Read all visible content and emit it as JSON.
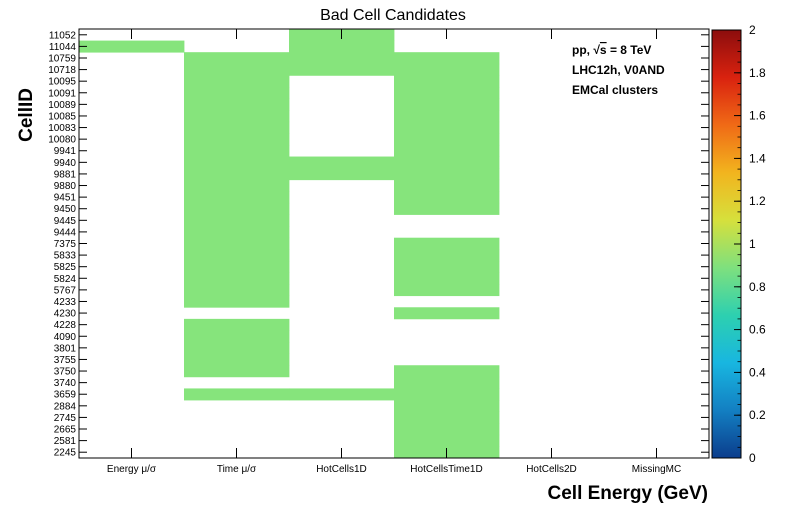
{
  "chart_data": {
    "type": "heatmap",
    "title": "Bad Cell Candidates",
    "xlabel": "Cell Energy (GeV)",
    "ylabel": "CellID",
    "x_categories": [
      "Energy μ/σ",
      "Time μ/σ",
      "HotCells1D",
      "HotCellsTime1D",
      "HotCells2D",
      "MissingMC"
    ],
    "y_categories": [
      "2245",
      "2581",
      "2665",
      "2745",
      "2884",
      "3659",
      "3740",
      "3750",
      "3755",
      "3801",
      "4090",
      "4228",
      "4230",
      "4233",
      "5767",
      "5824",
      "5825",
      "5833",
      "7375",
      "9444",
      "9445",
      "9450",
      "9451",
      "9880",
      "9881",
      "9940",
      "9941",
      "10080",
      "10083",
      "10085",
      "10089",
      "10091",
      "10095",
      "10718",
      "10759",
      "11044",
      "11052"
    ],
    "cells": [
      {
        "x": "Energy μ/σ",
        "y": "11044",
        "value": 1
      },
      {
        "x": "HotCells1D",
        "y": "11052",
        "value": 1
      },
      {
        "x": "HotCells1D",
        "y": "11044",
        "value": 1
      },
      {
        "x": "Time μ/σ",
        "y": "10759",
        "value": 1
      },
      {
        "x": "HotCells1D",
        "y": "10759",
        "value": 1
      },
      {
        "x": "HotCellsTime1D",
        "y": "10759",
        "value": 1
      },
      {
        "x": "Time μ/σ",
        "y": "10718",
        "value": 1
      },
      {
        "x": "HotCells1D",
        "y": "10718",
        "value": 1
      },
      {
        "x": "HotCellsTime1D",
        "y": "10718",
        "value": 1
      },
      {
        "x": "Time μ/σ",
        "y": "10095",
        "value": 1
      },
      {
        "x": "HotCellsTime1D",
        "y": "10095",
        "value": 1
      },
      {
        "x": "Time μ/σ",
        "y": "10091",
        "value": 1
      },
      {
        "x": "HotCellsTime1D",
        "y": "10091",
        "value": 1
      },
      {
        "x": "Time μ/σ",
        "y": "10089",
        "value": 1
      },
      {
        "x": "HotCellsTime1D",
        "y": "10089",
        "value": 1
      },
      {
        "x": "Time μ/σ",
        "y": "10085",
        "value": 1
      },
      {
        "x": "HotCellsTime1D",
        "y": "10085",
        "value": 1
      },
      {
        "x": "Time μ/σ",
        "y": "10083",
        "value": 1
      },
      {
        "x": "HotCellsTime1D",
        "y": "10083",
        "value": 1
      },
      {
        "x": "Time μ/σ",
        "y": "10080",
        "value": 1
      },
      {
        "x": "HotCellsTime1D",
        "y": "10080",
        "value": 1
      },
      {
        "x": "Time μ/σ",
        "y": "9941",
        "value": 1
      },
      {
        "x": "HotCellsTime1D",
        "y": "9941",
        "value": 1
      },
      {
        "x": "Time μ/σ",
        "y": "9940",
        "value": 1
      },
      {
        "x": "HotCells1D",
        "y": "9940",
        "value": 1
      },
      {
        "x": "HotCellsTime1D",
        "y": "9940",
        "value": 1
      },
      {
        "x": "Time μ/σ",
        "y": "9881",
        "value": 1
      },
      {
        "x": "HotCells1D",
        "y": "9881",
        "value": 1
      },
      {
        "x": "HotCellsTime1D",
        "y": "9881",
        "value": 1
      },
      {
        "x": "Time μ/σ",
        "y": "9880",
        "value": 1
      },
      {
        "x": "HotCellsTime1D",
        "y": "9880",
        "value": 1
      },
      {
        "x": "Time μ/σ",
        "y": "9451",
        "value": 1
      },
      {
        "x": "HotCellsTime1D",
        "y": "9451",
        "value": 1
      },
      {
        "x": "Time μ/σ",
        "y": "9450",
        "value": 1
      },
      {
        "x": "HotCellsTime1D",
        "y": "9450",
        "value": 1
      },
      {
        "x": "Time μ/σ",
        "y": "9445",
        "value": 1
      },
      {
        "x": "Time μ/σ",
        "y": "9444",
        "value": 1
      },
      {
        "x": "Time μ/σ",
        "y": "7375",
        "value": 1
      },
      {
        "x": "HotCellsTime1D",
        "y": "7375",
        "value": 1
      },
      {
        "x": "Time μ/σ",
        "y": "5833",
        "value": 1
      },
      {
        "x": "HotCellsTime1D",
        "y": "5833",
        "value": 1
      },
      {
        "x": "Time μ/σ",
        "y": "5825",
        "value": 1
      },
      {
        "x": "HotCellsTime1D",
        "y": "5825",
        "value": 1
      },
      {
        "x": "Time μ/σ",
        "y": "5824",
        "value": 1
      },
      {
        "x": "HotCellsTime1D",
        "y": "5824",
        "value": 1
      },
      {
        "x": "Time μ/σ",
        "y": "5767",
        "value": 1
      },
      {
        "x": "HotCellsTime1D",
        "y": "5767",
        "value": 1
      },
      {
        "x": "Time μ/σ",
        "y": "4233",
        "value": 1
      },
      {
        "x": "HotCellsTime1D",
        "y": "4230",
        "value": 1
      },
      {
        "x": "Time μ/σ",
        "y": "4228",
        "value": 1
      },
      {
        "x": "Time μ/σ",
        "y": "4090",
        "value": 1
      },
      {
        "x": "Time μ/σ",
        "y": "3801",
        "value": 1
      },
      {
        "x": "Time μ/σ",
        "y": "3755",
        "value": 1
      },
      {
        "x": "Time μ/σ",
        "y": "3750",
        "value": 1
      },
      {
        "x": "HotCellsTime1D",
        "y": "3750",
        "value": 1
      },
      {
        "x": "HotCellsTime1D",
        "y": "3740",
        "value": 1
      },
      {
        "x": "Time μ/σ",
        "y": "3659",
        "value": 1
      },
      {
        "x": "HotCells1D",
        "y": "3659",
        "value": 1
      },
      {
        "x": "HotCellsTime1D",
        "y": "3659",
        "value": 1
      },
      {
        "x": "HotCellsTime1D",
        "y": "2884",
        "value": 1
      },
      {
        "x": "HotCellsTime1D",
        "y": "2745",
        "value": 1
      },
      {
        "x": "HotCellsTime1D",
        "y": "2665",
        "value": 1
      },
      {
        "x": "HotCellsTime1D",
        "y": "2581",
        "value": 1
      },
      {
        "x": "HotCellsTime1D",
        "y": "2245",
        "value": 1
      }
    ],
    "zlim": [
      0,
      2
    ],
    "z_ticks": [
      0,
      0.2,
      0.4,
      0.6,
      0.8,
      1,
      1.2,
      1.4,
      1.6,
      1.8,
      2
    ],
    "colorscale": [
      "#0b3d8c",
      "#137fc2",
      "#18b6e0",
      "#2dd0b0",
      "#7ee07e",
      "#d6e03c",
      "#f2b41e",
      "#f06a16",
      "#d9220f",
      "#8c0d0d"
    ],
    "cell_color": "#86e47c",
    "annotations": [
      "pp, √s = 8 TeV",
      "LHC12h, V0AND",
      "EMCal clusters"
    ]
  }
}
